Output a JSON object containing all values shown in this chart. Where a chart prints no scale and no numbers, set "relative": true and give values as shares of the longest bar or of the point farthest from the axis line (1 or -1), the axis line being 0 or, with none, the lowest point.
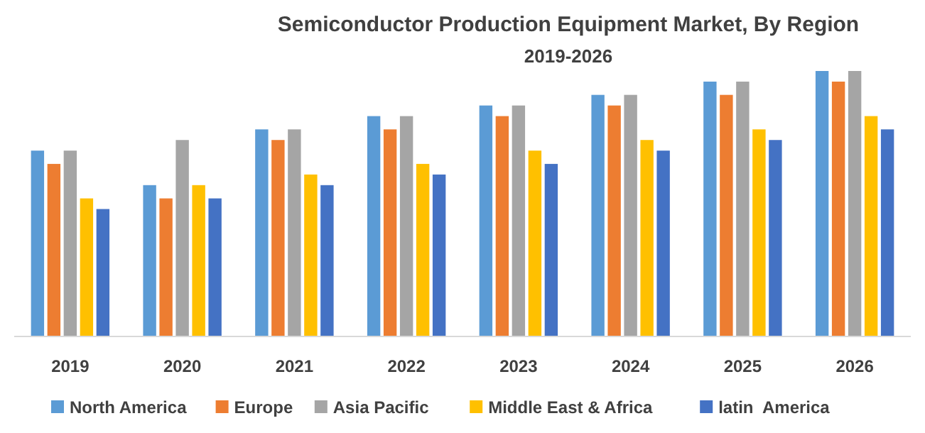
{
  "chart_data": {
    "type": "bar",
    "title": "Semiconductor Production Equipment Market, By Region",
    "subtitle": "2019-2026",
    "relative": true,
    "categories": [
      "2019",
      "2020",
      "2021",
      "2022",
      "2023",
      "2024",
      "2025",
      "2026"
    ],
    "legend": "bottom",
    "grid": false,
    "series": [
      {
        "name": "North America",
        "color": "#5b9bd5",
        "values": [
          0.7,
          0.57,
          0.78,
          0.83,
          0.87,
          0.91,
          0.96,
          1
        ]
      },
      {
        "name": "Europe",
        "color": "#ed7d31",
        "values": [
          0.65,
          0.52,
          0.74,
          0.78,
          0.83,
          0.87,
          0.91,
          0.96
        ]
      },
      {
        "name": "Asia Pacific",
        "color": "#a5a5a5",
        "values": [
          0.7,
          0.74,
          0.78,
          0.83,
          0.87,
          0.91,
          0.96,
          1
        ]
      },
      {
        "name": "Middle East & Africa",
        "color": "#ffc000",
        "values": [
          0.52,
          0.57,
          0.61,
          0.65,
          0.7,
          0.74,
          0.78,
          0.83
        ]
      },
      {
        "name": "latin  America",
        "color": "#4472c4",
        "values": [
          0.48,
          0.52,
          0.57,
          0.61,
          0.65,
          0.7,
          0.74,
          0.78
        ]
      }
    ]
  }
}
